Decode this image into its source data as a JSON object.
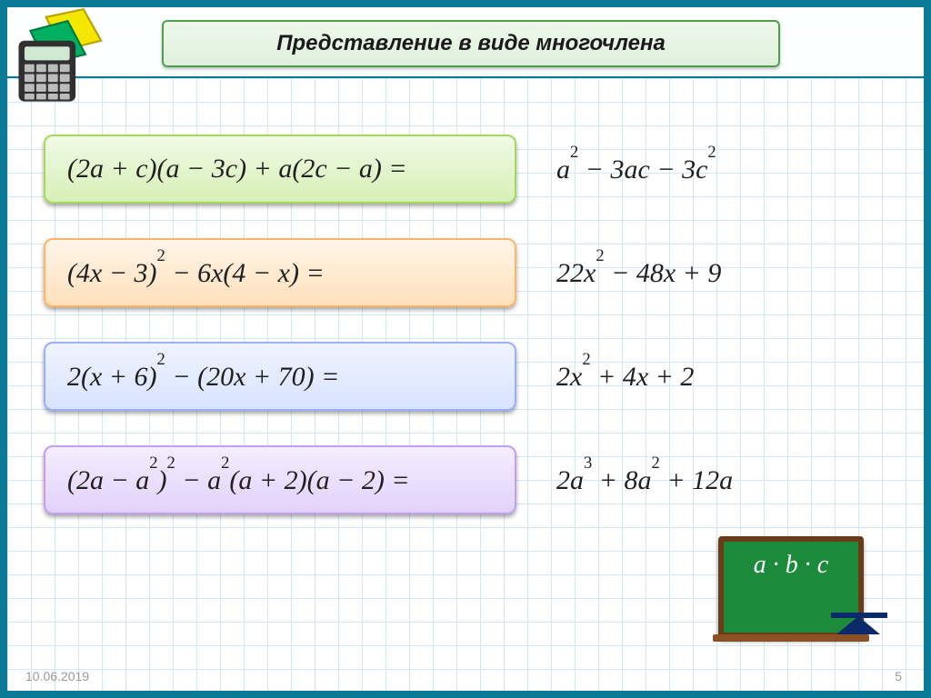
{
  "title": "Представление в виде многочлена",
  "rows": [
    {
      "boxClass": "bx-green",
      "expr": "(2a + c)(a − 3c) + a(2c − a) =",
      "ans": "a<sup>2</sup> − 3ac − 3c<sup>2</sup>"
    },
    {
      "boxClass": "bx-orange",
      "expr": "(4x − 3)<sup>2</sup> − 6x(4 − x) =",
      "ans": "22x<sup>2</sup> − 48x + 9"
    },
    {
      "boxClass": "bx-blue",
      "expr": "2(x + 6)<sup>2</sup> − (20x + 70) =",
      "ans": "2x<sup>2</sup> + 4x + 2"
    },
    {
      "boxClass": "bx-violet",
      "expr": "(2a − a<sup>2</sup>)<sup>2</sup> − a<sup>2</sup>(a + 2)(a − 2) =",
      "ans": "2a<sup>3</sup> + 8a<sup>2</sup> + 12a"
    }
  ],
  "board_text": "a · b · c",
  "footer": {
    "date": "10.06.2019",
    "page": "5"
  },
  "colors": {
    "frame": "#0a7a96",
    "grid": "#d0e8f8",
    "board_green": "#1c8a3a",
    "board_wood": "#6a3b17"
  }
}
